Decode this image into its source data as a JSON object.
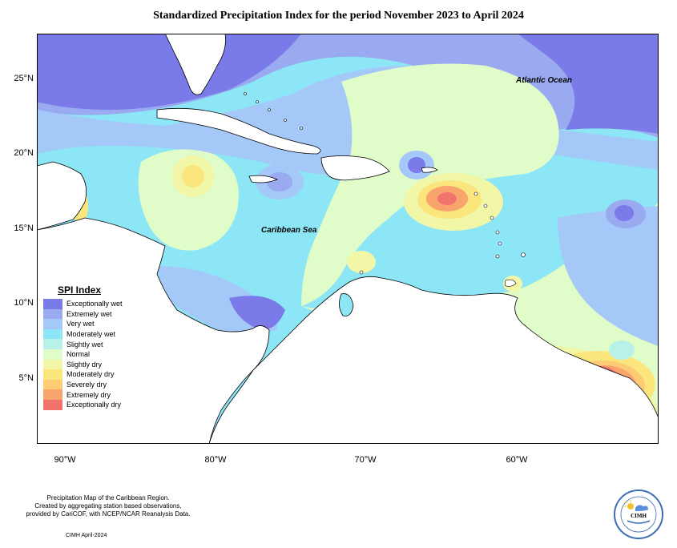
{
  "title": "Standardized Precipitation Index for the period November 2023 to April 2024",
  "axes": {
    "lat_labels": [
      "25°N",
      "20°N",
      "15°N",
      "10°N",
      "5°N"
    ],
    "lon_labels": [
      "90°W",
      "80°W",
      "70°W",
      "60°W"
    ]
  },
  "place_labels": {
    "atlantic": "Atlantic Ocean",
    "caribbean": "Caribbean Sea"
  },
  "legend": {
    "title": "SPI Index",
    "items": [
      {
        "label": "Exceptionally wet",
        "color": "#7a7ae8"
      },
      {
        "label": "Extremely wet",
        "color": "#9aaaf0"
      },
      {
        "label": "Very wet",
        "color": "#a4c8f7"
      },
      {
        "label": "Moderately wet",
        "color": "#8de6f5"
      },
      {
        "label": "Slightly wet",
        "color": "#b8f2e6"
      },
      {
        "label": "Normal",
        "color": "#e0fcc8"
      },
      {
        "label": "Slightly dry",
        "color": "#f2f7a8"
      },
      {
        "label": "Moderately dry",
        "color": "#fbe57d"
      },
      {
        "label": "Severely dry",
        "color": "#fccb74"
      },
      {
        "label": "Extremely dry",
        "color": "#f9a46c"
      },
      {
        "label": "Exceptionally dry",
        "color": "#f2736b"
      }
    ]
  },
  "credits": {
    "line1": "Precipitation Map of the Caribbean Region.",
    "line2": "Created by aggregating station based observations,",
    "line3": "provided by CariCOF, with NCEP/NCAR Reanalysis Data.",
    "date": "CIMH April-2024"
  },
  "logo": {
    "text": "CIMH",
    "icon": "sun-cloud-logo-icon"
  }
}
